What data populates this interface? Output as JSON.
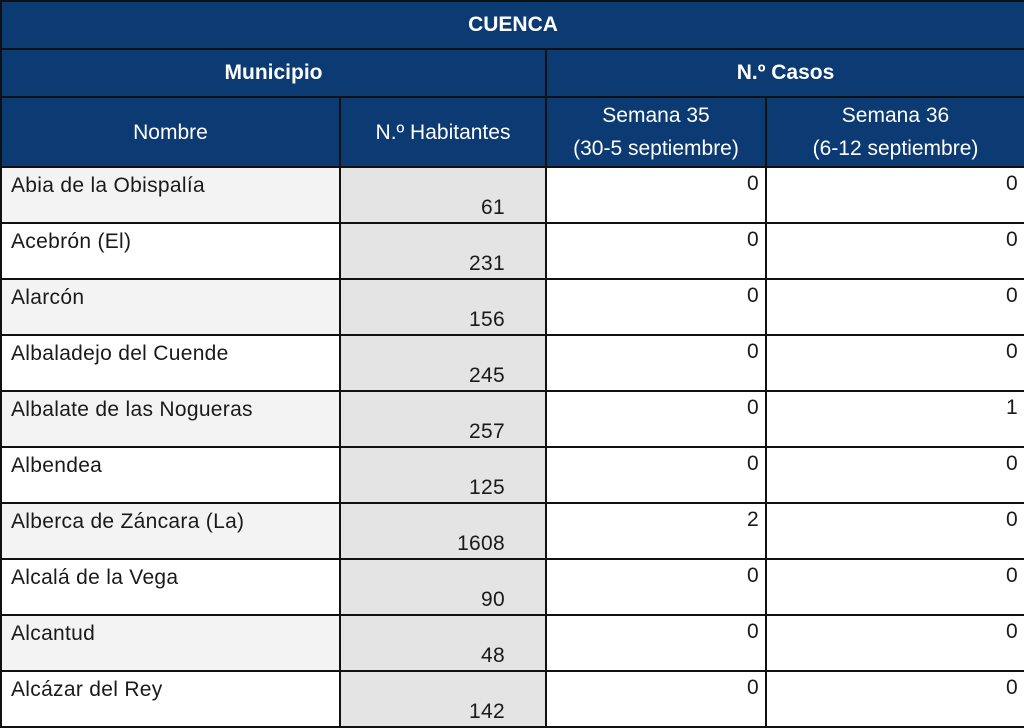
{
  "title": "CUENCA",
  "header": {
    "municipio": "Municipio",
    "casos": "N.º Casos",
    "nombre": "Nombre",
    "habitantes": "N.º Habitantes",
    "semana35_line1": "Semana 35",
    "semana35_line2": "(30-5 septiembre)",
    "semana36_line1": "Semana 36",
    "semana36_line2": "(6-12 septiembre)"
  },
  "colors": {
    "header_bg": "#0c3a73",
    "header_text": "#ffffff"
  },
  "rows": [
    {
      "nombre": "Abia de la Obispalía",
      "habitantes": "61",
      "semana35": "0",
      "semana36": "0"
    },
    {
      "nombre": "Acebrón (El)",
      "habitantes": "231",
      "semana35": "0",
      "semana36": "0"
    },
    {
      "nombre": "Alarcón",
      "habitantes": "156",
      "semana35": "0",
      "semana36": "0"
    },
    {
      "nombre": "Albaladejo del Cuende",
      "habitantes": "245",
      "semana35": "0",
      "semana36": "0"
    },
    {
      "nombre": "Albalate de las Nogueras",
      "habitantes": "257",
      "semana35": "0",
      "semana36": "1"
    },
    {
      "nombre": "Albendea",
      "habitantes": "125",
      "semana35": "0",
      "semana36": "0"
    },
    {
      "nombre": "Alberca de Záncara (La)",
      "habitantes": "1608",
      "semana35": "2",
      "semana36": "0"
    },
    {
      "nombre": "Alcalá de la Vega",
      "habitantes": "90",
      "semana35": "0",
      "semana36": "0"
    },
    {
      "nombre": "Alcantud",
      "habitantes": "48",
      "semana35": "0",
      "semana36": "0"
    },
    {
      "nombre": "Alcázar del Rey",
      "habitantes": "142",
      "semana35": "0",
      "semana36": "0"
    }
  ]
}
